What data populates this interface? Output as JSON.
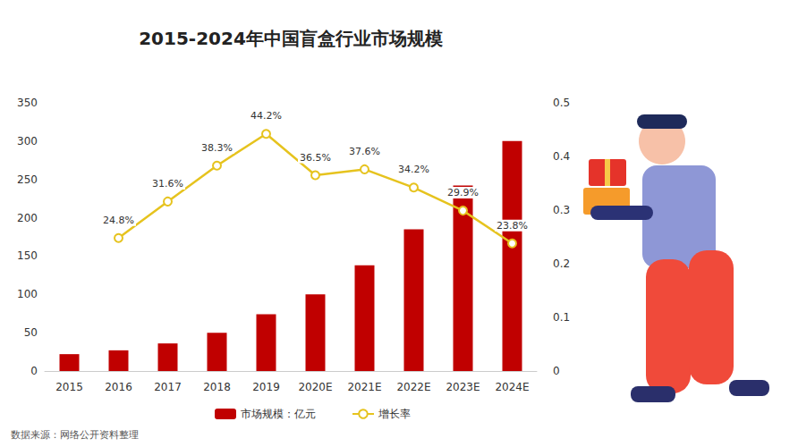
{
  "chart_data": {
    "type": "bar",
    "title": "2015-2024年中国盲盒行业市场规模",
    "source": "数据来源：网络公开资料整理",
    "categories": [
      "2015",
      "2016",
      "2017",
      "2018",
      "2019",
      "2020E",
      "2021E",
      "2022E",
      "2023E",
      "2024E"
    ],
    "series": [
      {
        "name": "市场规模：亿元",
        "type": "bar",
        "color": "#c00000",
        "values": [
          22,
          27,
          36,
          50,
          74,
          100,
          138,
          185,
          242,
          300
        ]
      },
      {
        "name": "增长率",
        "type": "line",
        "axis": "y2",
        "color": "#e6c31e",
        "marker": "circle",
        "data_labels": true,
        "values": [
          null,
          0.248,
          0.316,
          0.383,
          0.442,
          0.365,
          0.376,
          0.342,
          0.299,
          0.238
        ],
        "value_labels": [
          null,
          "24.8%",
          "31.6%",
          "38.3%",
          "44.2%",
          "36.5%",
          "37.6%",
          "34.2%",
          "29.9%",
          "23.8%"
        ]
      }
    ],
    "ylim": [
      0,
      350
    ],
    "yticks": [
      0,
      50,
      100,
      150,
      200,
      250,
      300,
      350
    ],
    "y2lim": [
      0,
      0.5
    ],
    "y2ticks": [
      0,
      0.1,
      0.2,
      0.3,
      0.4,
      0.5
    ],
    "legend": "bottom",
    "grid": false
  }
}
